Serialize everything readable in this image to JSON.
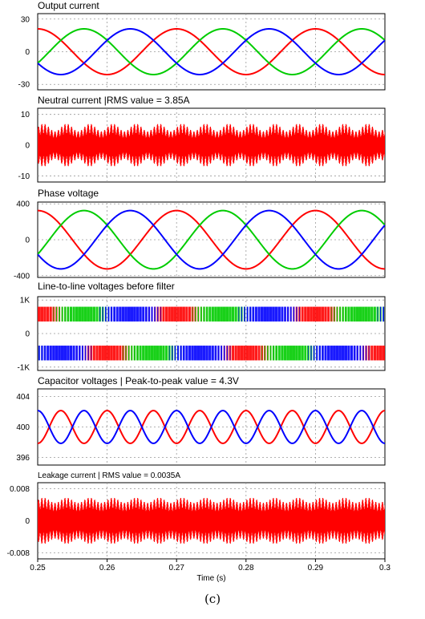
{
  "figure": {
    "caption": "(c)"
  },
  "chart_data": [
    {
      "type": "line",
      "title": "Output current",
      "ylim": [
        -35,
        35
      ],
      "yticks": [
        "30",
        "0",
        "-30"
      ],
      "ytick_values": [
        30,
        0,
        -30
      ],
      "xlim": [
        0.25,
        0.3
      ],
      "grid": true,
      "series": [
        {
          "color": "#ff0000",
          "amplitude": 21,
          "frequency_hz": 50,
          "phase_deg": -90
        },
        {
          "color": "#00cc00",
          "amplitude": 21,
          "frequency_hz": 50,
          "phase_deg": 150
        },
        {
          "color": "#0000ff",
          "amplitude": 21,
          "frequency_hz": 50,
          "phase_deg": 30
        }
      ]
    },
    {
      "type": "line",
      "title": "Neutral current |RMS value = 3.85A",
      "ylim": [
        -12,
        12
      ],
      "yticks": [
        "10",
        "0",
        "-10"
      ],
      "ytick_values": [
        10,
        0,
        -10
      ],
      "xlim": [
        0.25,
        0.3
      ],
      "grid": true,
      "series": [
        {
          "color": "#ff0000",
          "style": "high-frequency ripple",
          "amplitude_min": 4.5,
          "amplitude_max": 7
        }
      ]
    },
    {
      "type": "line",
      "title": "Phase voltage",
      "ylim": [
        -420,
        420
      ],
      "yticks": [
        "400",
        "0",
        "-400"
      ],
      "ytick_values": [
        400,
        0,
        -400
      ],
      "xlim": [
        0.25,
        0.3
      ],
      "grid": true,
      "series": [
        {
          "color": "#ff0000",
          "amplitude": 325,
          "frequency_hz": 50,
          "phase_deg": -90
        },
        {
          "color": "#00cc00",
          "amplitude": 325,
          "frequency_hz": 50,
          "phase_deg": 150
        },
        {
          "color": "#0000ff",
          "amplitude": 325,
          "frequency_hz": 50,
          "phase_deg": 30
        }
      ]
    },
    {
      "type": "line",
      "title": "Line-to-line voltages before filter",
      "ylim": [
        -1100,
        1100
      ],
      "yticks": [
        "1K",
        "0",
        "-1K"
      ],
      "ytick_values": [
        1000,
        0,
        -1000
      ],
      "xlim": [
        0.25,
        0.3
      ],
      "grid": true,
      "series": [
        {
          "color": "#ff0000",
          "style": "PWM",
          "level": 800,
          "frequency_hz": 50,
          "phase_deg": -90
        },
        {
          "color": "#00cc00",
          "style": "PWM",
          "level": 800,
          "frequency_hz": 50,
          "phase_deg": 150
        },
        {
          "color": "#0000ff",
          "style": "PWM",
          "level": 800,
          "frequency_hz": 50,
          "phase_deg": 30
        }
      ]
    },
    {
      "type": "line",
      "title": "Capacitor voltages | Peak-to-peak value = 4.3V",
      "ylim": [
        395,
        405
      ],
      "yticks": [
        "404",
        "400",
        "396"
      ],
      "ytick_values": [
        404,
        400,
        396
      ],
      "xlim": [
        0.25,
        0.3
      ],
      "grid": true,
      "series": [
        {
          "color": "#ff0000",
          "offset": 400,
          "amplitude": 2.15,
          "frequency_hz": 150,
          "phase_deg": 90
        },
        {
          "color": "#0000ff",
          "offset": 400,
          "amplitude": 2.15,
          "frequency_hz": 150,
          "phase_deg": -90
        }
      ]
    },
    {
      "type": "line",
      "title": "Leakage current | RMS value = 0.0035A",
      "ylim": [
        -0.0095,
        0.0095
      ],
      "yticks": [
        "0.008",
        "0",
        "-0.008"
      ],
      "ytick_values": [
        0.008,
        0,
        -0.008
      ],
      "xlim": [
        0.25,
        0.3
      ],
      "xticks": [
        "0.25",
        "0.26",
        "0.27",
        "0.28",
        "0.29",
        "0.3"
      ],
      "xtick_values": [
        0.25,
        0.26,
        0.27,
        0.28,
        0.29,
        0.3
      ],
      "xlabel": "Time (s)",
      "grid": true,
      "series": [
        {
          "color": "#ff0000",
          "style": "high-frequency ripple",
          "amplitude_min": 0.0045,
          "amplitude_max": 0.0058
        }
      ]
    }
  ]
}
